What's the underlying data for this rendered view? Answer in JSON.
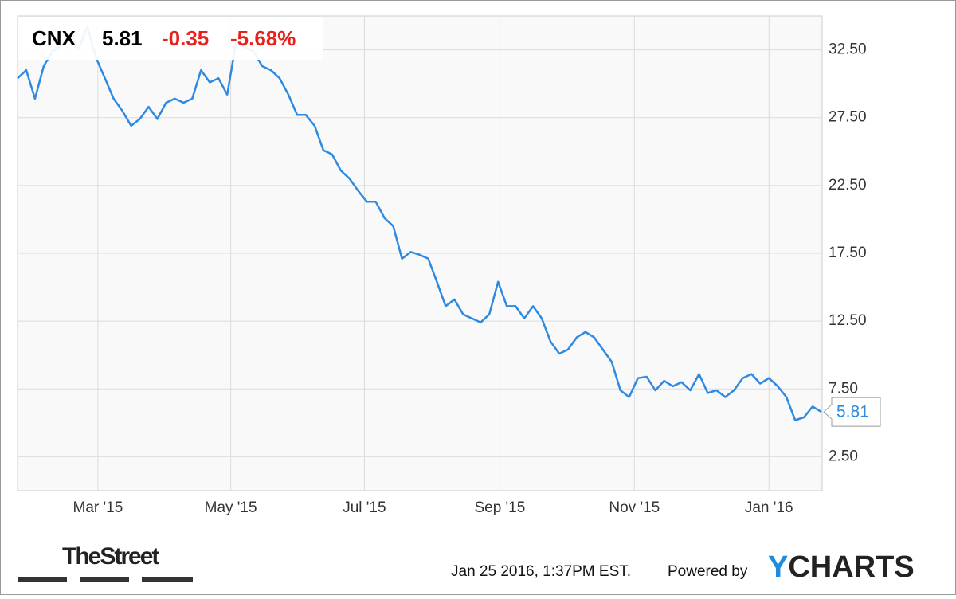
{
  "chart_data": {
    "type": "line",
    "quote": {
      "symbol": "CNX",
      "price": 5.81,
      "change": -0.35,
      "change_pct": "-5.68%"
    },
    "series": [
      {
        "name": "CNX",
        "color": "#2d8ae0",
        "values": [
          30.4,
          31.0,
          28.9,
          31.3,
          32.4,
          32.8,
          33.6,
          32.6,
          34.2,
          31.9,
          30.4,
          28.9,
          28.0,
          26.9,
          27.4,
          28.3,
          27.4,
          28.6,
          28.9,
          28.6,
          28.9,
          31.0,
          30.1,
          30.4,
          29.2,
          33.0,
          32.7,
          32.4,
          31.3,
          31.0,
          30.4,
          29.2,
          27.7,
          27.7,
          26.9,
          25.1,
          24.8,
          23.6,
          23.0,
          22.1,
          21.3,
          21.3,
          20.1,
          19.5,
          17.1,
          17.6,
          17.4,
          17.1,
          15.4,
          13.6,
          14.1,
          13.0,
          12.7,
          12.4,
          13.0,
          15.4,
          13.6,
          13.6,
          12.7,
          13.6,
          12.7,
          11.0,
          10.1,
          10.4,
          11.3,
          11.7,
          11.3,
          10.4,
          9.5,
          7.4,
          6.9,
          8.3,
          8.4,
          7.4,
          8.1,
          7.7,
          8.0,
          7.4,
          8.6,
          7.2,
          7.4,
          6.9,
          7.4,
          8.3,
          8.6,
          7.9,
          8.3,
          7.7,
          6.9,
          5.2,
          5.4,
          6.2,
          5.81
        ]
      }
    ],
    "xlim": [
      0,
      92
    ],
    "xticks": [
      {
        "value": 9.2,
        "label": "Mar '15"
      },
      {
        "value": 24.4,
        "label": "May '15"
      },
      {
        "value": 39.7,
        "label": "Jul '15"
      },
      {
        "value": 55.2,
        "label": "Sep '15"
      },
      {
        "value": 70.6,
        "label": "Nov '15"
      },
      {
        "value": 86.0,
        "label": "Jan '16"
      }
    ],
    "ylim": [
      0,
      35
    ],
    "yticks": [
      {
        "value": 2.5,
        "label": "2.50"
      },
      {
        "value": 7.5,
        "label": "7.50"
      },
      {
        "value": 12.5,
        "label": "12.50"
      },
      {
        "value": 17.5,
        "label": "17.50"
      },
      {
        "value": 22.5,
        "label": "22.50"
      },
      {
        "value": 27.5,
        "label": "27.50"
      },
      {
        "value": 32.5,
        "label": "32.50"
      }
    ],
    "grid": true
  },
  "footer": {
    "source_logo": "TheStreet",
    "timestamp": "Jan 25 2016, 1:37PM EST.",
    "powered_by": "Powered by",
    "brand_first": "Y",
    "brand_rest": "CHARTS"
  }
}
